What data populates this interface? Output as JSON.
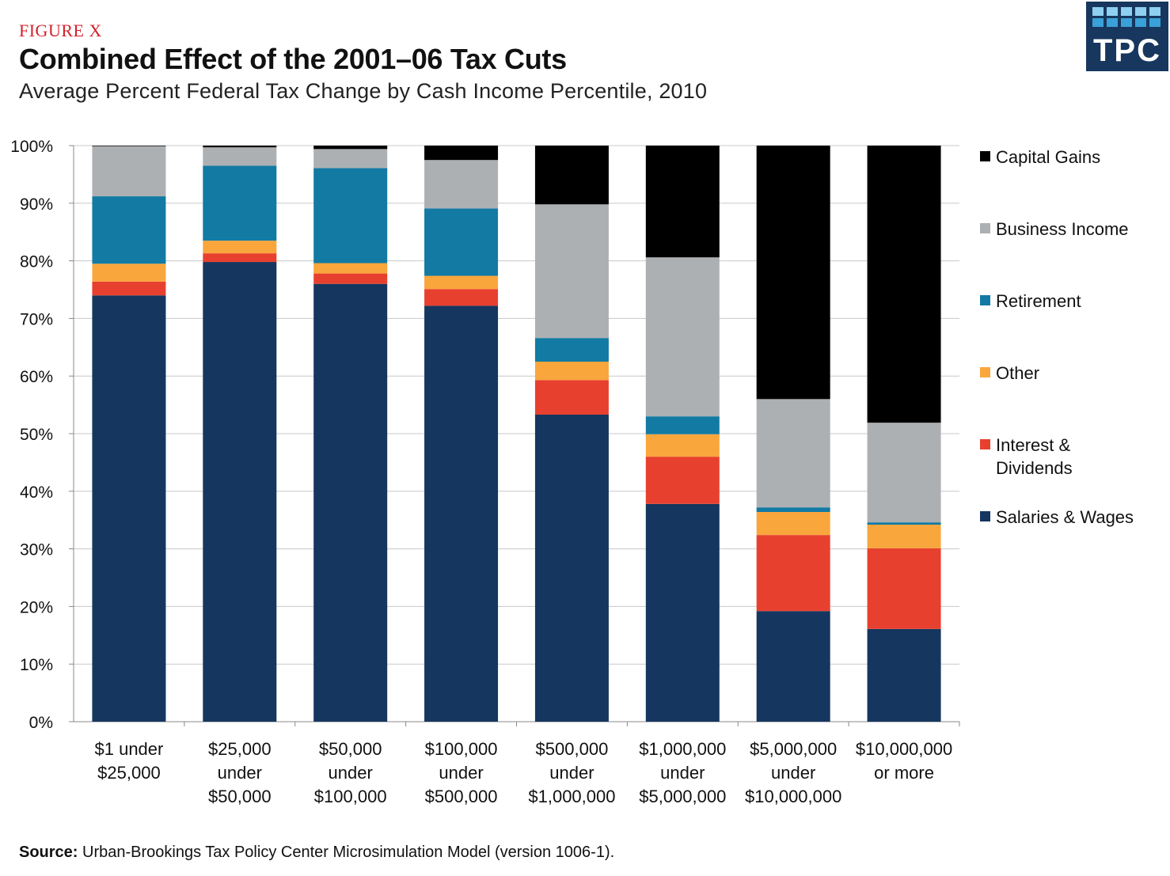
{
  "figure_label": "FIGURE X",
  "title": "Combined Effect of the 2001–06 Tax Cuts",
  "subtitle": "Average Percent Federal Tax Change by Cash Income Percentile, 2010",
  "logo": {
    "text": "TPC",
    "icon": "tpc-logo-icon"
  },
  "source": {
    "label": "Source:",
    "text": " Urban-Brookings Tax Policy Center Microsimulation Model (version 1006-1)."
  },
  "chart_data": {
    "type": "bar",
    "stacked": true,
    "title": "Combined Effect of the 2001–06 Tax Cuts",
    "subtitle": "Average Percent Federal Tax Change by Cash Income Percentile, 2010",
    "xlabel": "",
    "ylabel": "",
    "ylim": [
      0,
      100
    ],
    "yticks": [
      "0%",
      "10%",
      "20%",
      "30%",
      "40%",
      "50%",
      "60%",
      "70%",
      "80%",
      "90%",
      "100%"
    ],
    "grid": true,
    "legend_position": "right",
    "categories": [
      [
        "$1 under",
        "$25,000"
      ],
      [
        "$25,000",
        "under",
        "$50,000"
      ],
      [
        "$50,000",
        "under",
        "$100,000"
      ],
      [
        "$100,000",
        "under",
        "$500,000"
      ],
      [
        "$500,000",
        "under",
        "$1,000,000"
      ],
      [
        "$1,000,000",
        "under",
        "$5,000,000"
      ],
      [
        "$5,000,000",
        "under",
        "$10,000,000"
      ],
      [
        "$10,000,000",
        "or more"
      ]
    ],
    "series": [
      {
        "name": "Salaries & Wages",
        "color": "#15365f",
        "values": [
          74.0,
          79.8,
          76.0,
          72.2,
          53.3,
          37.8,
          19.2,
          16.1
        ]
      },
      {
        "name": "Interest & Dividends",
        "color": "#e8402f",
        "values": [
          2.4,
          1.5,
          1.8,
          2.9,
          6.0,
          8.2,
          13.2,
          14.0
        ]
      },
      {
        "name": "Other",
        "color": "#f9a63c",
        "values": [
          3.1,
          2.2,
          1.8,
          2.3,
          3.2,
          3.9,
          4.0,
          4.1
        ]
      },
      {
        "name": "Retirement",
        "color": "#137aa3",
        "values": [
          11.7,
          13.0,
          16.5,
          11.7,
          4.1,
          3.1,
          0.8,
          0.4
        ]
      },
      {
        "name": "Business Income",
        "color": "#adb0b3",
        "values": [
          8.7,
          3.2,
          3.3,
          8.4,
          23.2,
          27.6,
          18.8,
          17.3
        ]
      },
      {
        "name": "Capital Gains",
        "color": "#000000",
        "values": [
          0.1,
          0.3,
          0.6,
          2.5,
          10.2,
          19.4,
          44.0,
          48.1
        ]
      }
    ],
    "legend": [
      {
        "lines": [
          "Capital Gains"
        ],
        "color": "#000000"
      },
      {
        "lines": [
          "Business Income"
        ],
        "color": "#adb0b3"
      },
      {
        "lines": [
          "Retirement"
        ],
        "color": "#137aa3"
      },
      {
        "lines": [
          "Other"
        ],
        "color": "#f9a63c"
      },
      {
        "lines": [
          "Interest &",
          "Dividends"
        ],
        "color": "#e8402f"
      },
      {
        "lines": [
          "Salaries & Wages"
        ],
        "color": "#15365f"
      }
    ]
  }
}
